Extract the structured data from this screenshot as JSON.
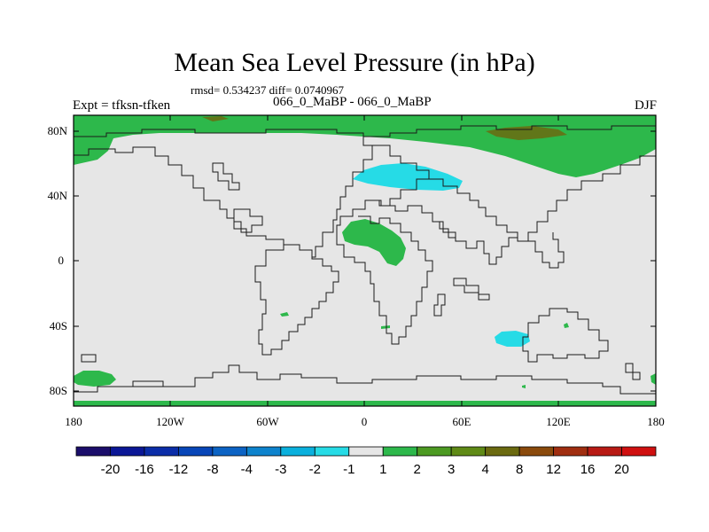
{
  "title": "Mean Sea Level Pressure (in hPa)",
  "stats_text": "rmsd= 0.534237 diff= 0.0740967",
  "experiment": "Expt = tfksn-tfken",
  "period": "066_0_MaBP - 066_0_MaBP",
  "season": "DJF",
  "map": {
    "lon_labels": [
      "180",
      "120W",
      "60W",
      "0",
      "60E",
      "120E",
      "180"
    ],
    "lat_labels": [
      "80N",
      "40N",
      "0",
      "40S",
      "80S"
    ]
  },
  "colorbar": {
    "labels": [
      "-20",
      "-16",
      "-12",
      "-8",
      "-4",
      "-3",
      "-2",
      "-1",
      "1",
      "2",
      "3",
      "4",
      "8",
      "12",
      "16",
      "20"
    ],
    "colors": [
      "#1b0e6b",
      "#0b1796",
      "#0b2da8",
      "#0846b8",
      "#0c63c4",
      "#0d83cd",
      "#0ab0dd",
      "#26dbe6",
      "#e6e6e6",
      "#2db84b",
      "#4c9a22",
      "#5f8a16",
      "#6b6a10",
      "#8a4a0c",
      "#a02e10",
      "#b81a14",
      "#d01010"
    ]
  }
}
